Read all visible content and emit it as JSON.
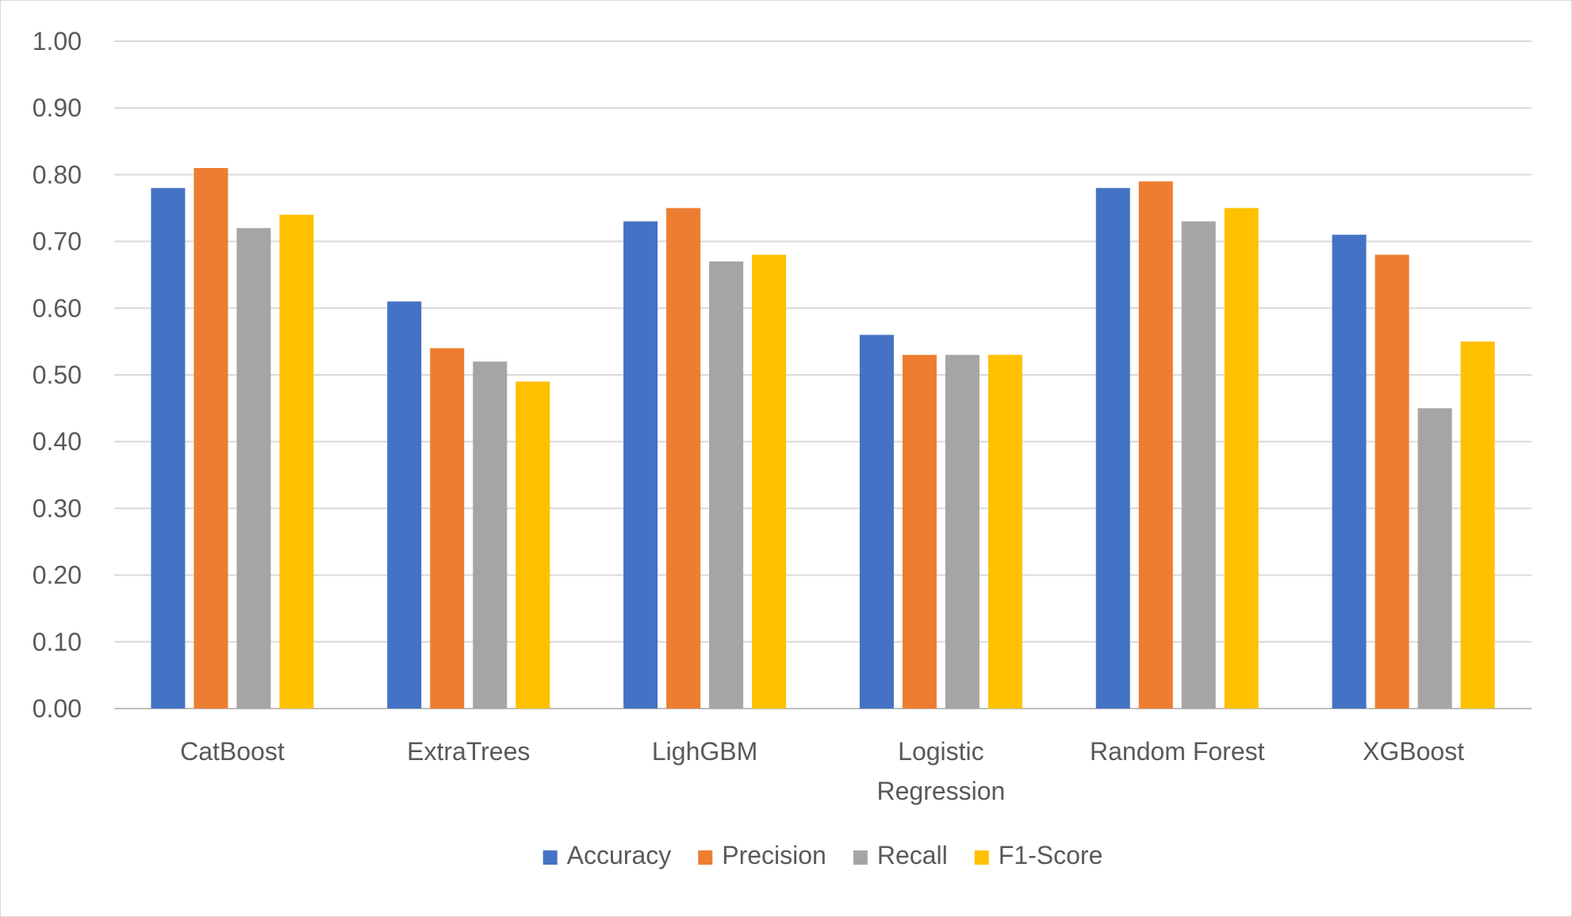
{
  "chart_data": {
    "type": "bar",
    "categories": [
      [
        "CatBoost"
      ],
      [
        "ExtraTrees"
      ],
      [
        "LighGBM"
      ],
      [
        "Logistic",
        "Regression"
      ],
      [
        "Random Forest"
      ],
      [
        "XGBoost"
      ]
    ],
    "series": [
      {
        "name": "Accuracy",
        "color": "#4472c4",
        "values": [
          0.78,
          0.61,
          0.73,
          0.56,
          0.78,
          0.71
        ]
      },
      {
        "name": "Precision",
        "color": "#ed7d31",
        "values": [
          0.81,
          0.54,
          0.75,
          0.53,
          0.79,
          0.68
        ]
      },
      {
        "name": "Recall",
        "color": "#a5a5a5",
        "values": [
          0.72,
          0.52,
          0.67,
          0.53,
          0.73,
          0.45
        ]
      },
      {
        "name": "F1-Score",
        "color": "#ffc000",
        "values": [
          0.74,
          0.49,
          0.68,
          0.53,
          0.75,
          0.55
        ]
      }
    ],
    "y_ticks": [
      "0.00",
      "0.10",
      "0.20",
      "0.30",
      "0.40",
      "0.50",
      "0.60",
      "0.70",
      "0.80",
      "0.90",
      "1.00"
    ],
    "ylim": [
      0,
      1
    ],
    "title": "",
    "xlabel": "",
    "ylabel": "",
    "grid": true,
    "legend_position": "bottom"
  }
}
